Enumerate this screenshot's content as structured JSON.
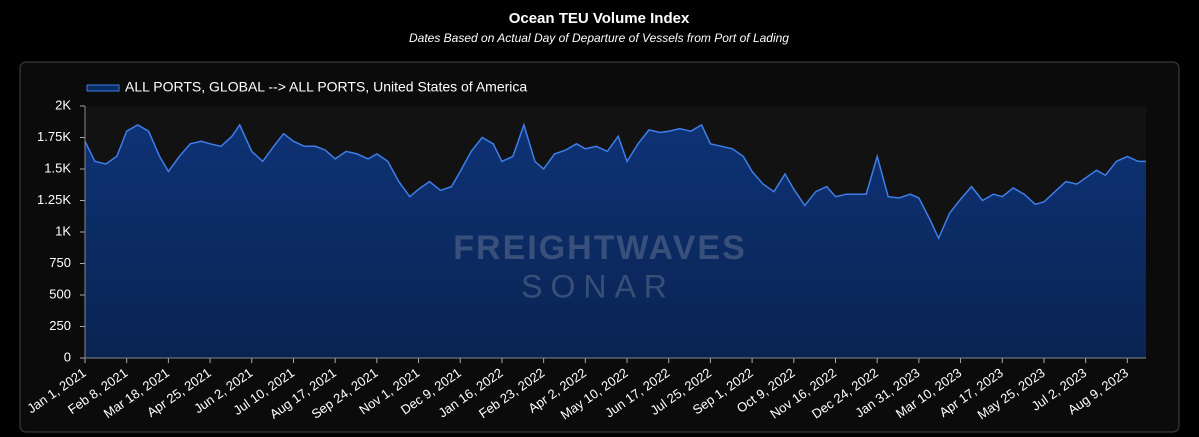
{
  "chart_data": {
    "type": "area",
    "title": "Ocean TEU Volume Index",
    "subtitle": "Dates Based on Actual Day of Departure of Vessels from Port of Lading",
    "watermark": [
      "FREIGHTWAVES",
      "SONAR"
    ],
    "color": "#3d7ee8",
    "fill": "#0b2b63",
    "legend": "top-left",
    "grid": false,
    "ylim": [
      0,
      2000
    ],
    "yticks": [
      0,
      250,
      500,
      750,
      {
        "value": 1000,
        "label": "1K"
      },
      {
        "value": 1250,
        "label": "1.25K"
      },
      {
        "value": 1500,
        "label": "1.5K"
      },
      {
        "value": 1750,
        "label": "1.75K"
      },
      {
        "value": 2000,
        "label": "2K"
      }
    ],
    "xlim": [
      "2021-01-01",
      "2023-08-26"
    ],
    "xticks": [
      {
        "value": "2021-01-01",
        "label": "Jan 1, 2021"
      },
      {
        "value": "2021-02-08",
        "label": "Feb 8, 2021"
      },
      {
        "value": "2021-03-18",
        "label": "Mar 18, 2021"
      },
      {
        "value": "2021-04-25",
        "label": "Apr 25, 2021"
      },
      {
        "value": "2021-06-02",
        "label": "Jun 2, 2021"
      },
      {
        "value": "2021-07-10",
        "label": "Jul 10, 2021"
      },
      {
        "value": "2021-08-17",
        "label": "Aug 17, 2021"
      },
      {
        "value": "2021-09-24",
        "label": "Sep 24, 2021"
      },
      {
        "value": "2021-11-01",
        "label": "Nov 1, 2021"
      },
      {
        "value": "2021-12-09",
        "label": "Dec 9, 2021"
      },
      {
        "value": "2022-01-16",
        "label": "Jan 16, 2022"
      },
      {
        "value": "2022-02-23",
        "label": "Feb 23, 2022"
      },
      {
        "value": "2022-04-02",
        "label": "Apr 2, 2022"
      },
      {
        "value": "2022-05-10",
        "label": "May 10, 2022"
      },
      {
        "value": "2022-06-17",
        "label": "Jun 17, 2022"
      },
      {
        "value": "2022-07-25",
        "label": "Jul 25, 2022"
      },
      {
        "value": "2022-09-01",
        "label": "Sep 1, 2022"
      },
      {
        "value": "2022-10-09",
        "label": "Oct 9, 2022"
      },
      {
        "value": "2022-11-16",
        "label": "Nov 16, 2022"
      },
      {
        "value": "2022-12-24",
        "label": "Dec 24, 2022"
      },
      {
        "value": "2023-01-31",
        "label": "Jan 31, 2023"
      },
      {
        "value": "2023-03-10",
        "label": "Mar 10, 2023"
      },
      {
        "value": "2023-04-17",
        "label": "Apr 17, 2023"
      },
      {
        "value": "2023-05-25",
        "label": "May 25, 2023"
      },
      {
        "value": "2023-07-02",
        "label": "Jul 2, 2023"
      },
      {
        "value": "2023-08-09",
        "label": "Aug 9, 2023"
      }
    ],
    "x": [
      "2021-01-01",
      "2021-01-10",
      "2021-01-20",
      "2021-01-30",
      "2021-02-08",
      "2021-02-18",
      "2021-02-28",
      "2021-03-10",
      "2021-03-18",
      "2021-03-28",
      "2021-04-07",
      "2021-04-17",
      "2021-04-25",
      "2021-05-05",
      "2021-05-15",
      "2021-05-22",
      "2021-06-02",
      "2021-06-12",
      "2021-06-22",
      "2021-07-01",
      "2021-07-10",
      "2021-07-20",
      "2021-07-30",
      "2021-08-08",
      "2021-08-17",
      "2021-08-27",
      "2021-09-06",
      "2021-09-16",
      "2021-09-24",
      "2021-10-04",
      "2021-10-14",
      "2021-10-24",
      "2021-11-01",
      "2021-11-11",
      "2021-11-21",
      "2021-12-01",
      "2021-12-09",
      "2021-12-19",
      "2021-12-29",
      "2022-01-08",
      "2022-01-16",
      "2022-01-26",
      "2022-02-05",
      "2022-02-15",
      "2022-02-23",
      "2022-03-05",
      "2022-03-15",
      "2022-03-25",
      "2022-04-02",
      "2022-04-12",
      "2022-04-22",
      "2022-05-02",
      "2022-05-10",
      "2022-05-20",
      "2022-05-30",
      "2022-06-09",
      "2022-06-17",
      "2022-06-27",
      "2022-07-07",
      "2022-07-17",
      "2022-07-25",
      "2022-08-04",
      "2022-08-14",
      "2022-08-24",
      "2022-09-01",
      "2022-09-11",
      "2022-09-21",
      "2022-10-01",
      "2022-10-09",
      "2022-10-19",
      "2022-10-29",
      "2022-11-08",
      "2022-11-16",
      "2022-11-26",
      "2022-12-06",
      "2022-12-14",
      "2022-12-24",
      "2023-01-03",
      "2023-01-13",
      "2023-01-23",
      "2023-01-31",
      "2023-02-10",
      "2023-02-18",
      "2023-02-28",
      "2023-03-10",
      "2023-03-20",
      "2023-03-30",
      "2023-04-09",
      "2023-04-17",
      "2023-04-27",
      "2023-05-07",
      "2023-05-17",
      "2023-05-25",
      "2023-06-04",
      "2023-06-14",
      "2023-06-24",
      "2023-07-02",
      "2023-07-12",
      "2023-07-20",
      "2023-07-30",
      "2023-08-09",
      "2023-08-19",
      "2023-08-26"
    ],
    "series": [
      {
        "name": "ALL PORTS, GLOBAL --> ALL PORTS, United States of America",
        "values": [
          1720,
          1560,
          1540,
          1600,
          1800,
          1850,
          1800,
          1600,
          1480,
          1600,
          1700,
          1720,
          1700,
          1680,
          1760,
          1850,
          1640,
          1560,
          1680,
          1780,
          1720,
          1680,
          1680,
          1650,
          1580,
          1640,
          1620,
          1580,
          1620,
          1560,
          1400,
          1280,
          1340,
          1400,
          1330,
          1360,
          1480,
          1640,
          1750,
          1700,
          1560,
          1600,
          1850,
          1560,
          1500,
          1620,
          1650,
          1700,
          1660,
          1680,
          1640,
          1760,
          1560,
          1700,
          1810,
          1790,
          1800,
          1820,
          1800,
          1850,
          1700,
          1680,
          1660,
          1600,
          1480,
          1380,
          1320,
          1460,
          1340,
          1210,
          1320,
          1360,
          1280,
          1300,
          1300,
          1300,
          1600,
          1280,
          1270,
          1300,
          1270,
          1100,
          950,
          1150,
          1260,
          1360,
          1250,
          1300,
          1280,
          1350,
          1300,
          1220,
          1240,
          1320,
          1400,
          1380,
          1430,
          1490,
          1450,
          1560,
          1600,
          1560,
          1560
        ]
      }
    ]
  }
}
